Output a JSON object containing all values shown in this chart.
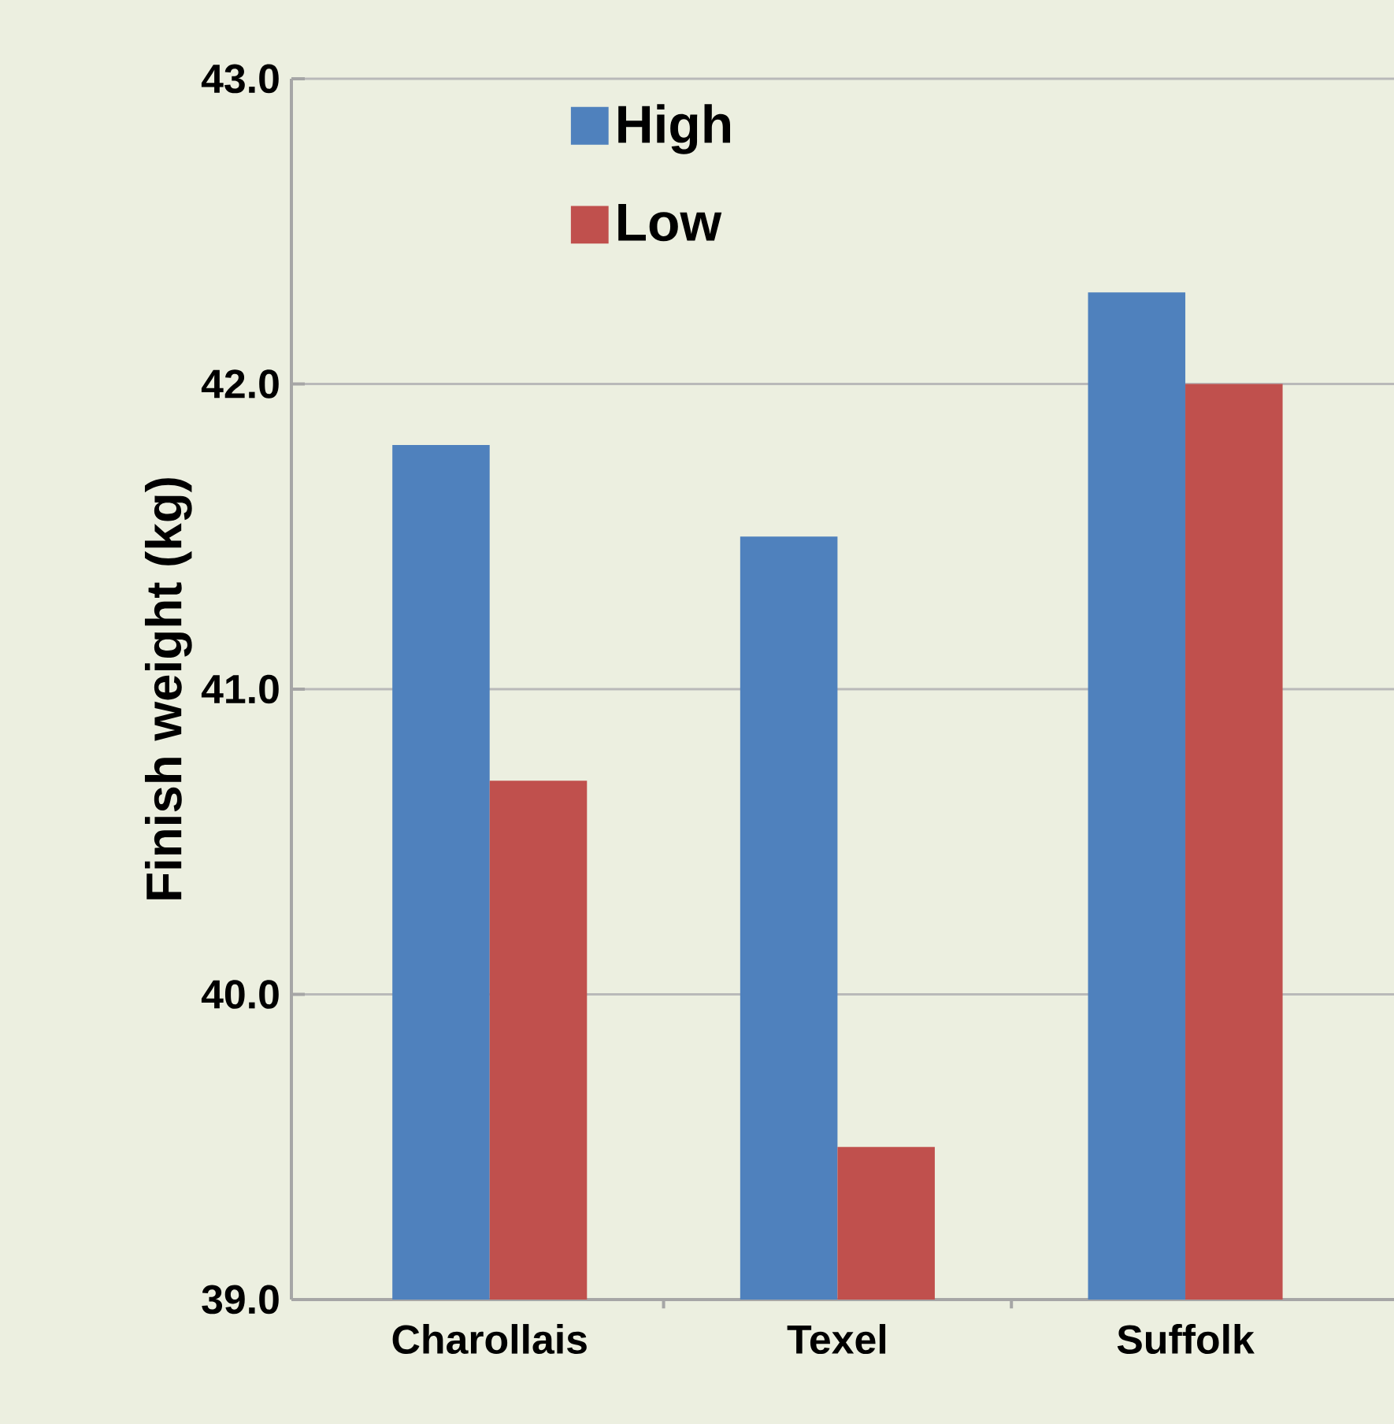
{
  "chart_data": {
    "type": "bar",
    "ylabel": "Finish weight (kg)",
    "categories": [
      "Charollais",
      "Texel",
      "Suffolk"
    ],
    "series": [
      {
        "name": "High",
        "color": "#4f81bd",
        "values": [
          41.8,
          41.5,
          42.3
        ]
      },
      {
        "name": "Low",
        "color": "#c0504d",
        "values": [
          40.7,
          39.5,
          42.0
        ]
      }
    ],
    "ylim": [
      39,
      43
    ],
    "yticks": [
      {
        "value": 39,
        "label": "39.0"
      },
      {
        "value": 40,
        "label": "40.0"
      },
      {
        "value": 41,
        "label": "41.0"
      },
      {
        "value": 42,
        "label": "42.0"
      },
      {
        "value": 43,
        "label": "43.0"
      }
    ],
    "grid": "y",
    "legend": "top"
  }
}
